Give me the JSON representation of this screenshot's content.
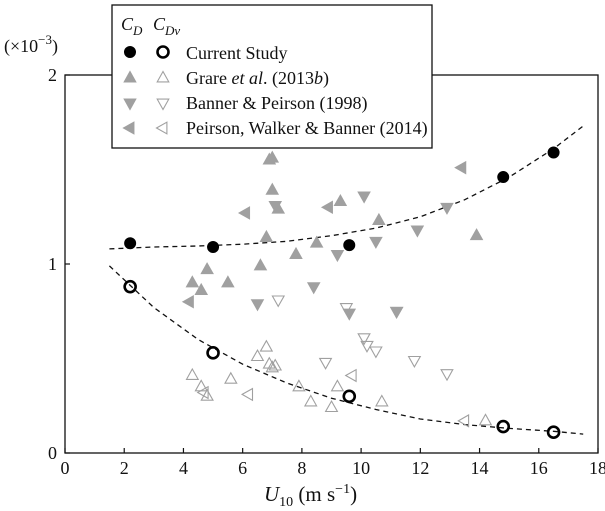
{
  "chart_data": {
    "type": "scatter",
    "xlabel": "U10 (m s−1)",
    "xlabel_parts": {
      "sym": "U",
      "sub": "10",
      "units": " (m s",
      "exp": "−1",
      "close": ")"
    },
    "ylabel": "",
    "y_scale_label": "(×10−3)",
    "y_scale_parts": {
      "pre": "(×10",
      "exp": "−3",
      "close": ")"
    },
    "xlim": [
      0,
      18
    ],
    "ylim": [
      0,
      2
    ],
    "x_ticks": [
      0,
      2,
      4,
      6,
      8,
      10,
      12,
      14,
      16,
      18
    ],
    "y_ticks": [
      0,
      1,
      2
    ],
    "grid": false,
    "legend": {
      "placement": "top-left",
      "headers": [
        {
          "sym": "C",
          "sub": "D"
        },
        {
          "sym": "C",
          "sub": "Dv"
        }
      ],
      "entries": [
        {
          "label": "Current Study",
          "parts": [
            "Current Study"
          ],
          "marker": "circle"
        },
        {
          "label": "Grare et al. (2013b)",
          "parts": [
            "Grare ",
            "et al",
            ". (2013",
            "b",
            ")"
          ],
          "marker": "triangle-up"
        },
        {
          "label": "Banner & Peirson (1998)",
          "parts": [
            "Banner & Peirson (1998)"
          ],
          "marker": "triangle-down"
        },
        {
          "label": "Peirson, Walker & Banner (2014)",
          "parts": [
            "Peirson, Walker & Banner (2014)"
          ],
          "marker": "triangle-left"
        }
      ]
    },
    "colors": {
      "current": "#000000",
      "literature": "#a0a0a0"
    },
    "series": [
      {
        "group": "CD",
        "source": "Current Study",
        "marker": "circle",
        "filled": true,
        "x": [
          2.2,
          5.0,
          9.6,
          14.8,
          16.5
        ],
        "y": [
          1.11,
          1.09,
          1.1,
          1.46,
          1.59
        ]
      },
      {
        "group": "CDv",
        "source": "Current Study",
        "marker": "circle",
        "filled": false,
        "x": [
          2.2,
          5.0,
          9.6,
          14.8,
          16.5
        ],
        "y": [
          0.88,
          0.53,
          0.3,
          0.14,
          0.11
        ]
      },
      {
        "group": "CD",
        "source": "Grare et al. (2013b)",
        "marker": "triangle-up",
        "filled": true,
        "x": [
          4.3,
          4.6,
          4.8,
          5.5,
          6.6,
          6.8,
          6.9,
          7.0,
          7.0,
          7.2,
          7.8,
          8.5,
          9.3,
          10.6,
          13.9
        ],
        "y": [
          0.9,
          0.86,
          0.97,
          0.9,
          0.99,
          1.14,
          1.55,
          1.56,
          1.39,
          1.29,
          1.05,
          1.11,
          1.33,
          1.23,
          1.15
        ]
      },
      {
        "group": "CDv",
        "source": "Grare et al. (2013b)",
        "marker": "triangle-up",
        "filled": false,
        "x": [
          4.3,
          4.6,
          4.8,
          5.6,
          6.5,
          6.8,
          6.9,
          7.0,
          7.1,
          7.9,
          8.3,
          9.0,
          9.2,
          10.7,
          14.2
        ],
        "y": [
          0.41,
          0.35,
          0.3,
          0.39,
          0.51,
          0.56,
          0.47,
          0.45,
          0.46,
          0.35,
          0.27,
          0.24,
          0.35,
          0.27,
          0.17
        ]
      },
      {
        "group": "CD",
        "source": "Banner & Peirson (1998)",
        "marker": "triangle-down",
        "filled": true,
        "x": [
          6.5,
          7.1,
          8.4,
          9.2,
          9.6,
          10.1,
          10.5,
          11.2,
          11.9,
          12.9
        ],
        "y": [
          0.79,
          1.31,
          0.88,
          1.05,
          0.74,
          1.36,
          1.12,
          0.75,
          1.18,
          1.3
        ]
      },
      {
        "group": "CDv",
        "source": "Banner & Peirson (1998)",
        "marker": "triangle-down",
        "filled": false,
        "x": [
          7.2,
          8.8,
          9.5,
          10.1,
          10.2,
          10.5,
          11.2,
          11.8,
          12.9
        ],
        "y": [
          0.81,
          0.48,
          0.77,
          0.61,
          0.57,
          0.54,
          0.75,
          0.49,
          0.42
        ]
      },
      {
        "group": "CD",
        "source": "Peirson, Walker & Banner (2014)",
        "marker": "triangle-left",
        "filled": true,
        "x": [
          4.2,
          6.1,
          8.9,
          13.4
        ],
        "y": [
          0.8,
          1.27,
          1.3,
          1.51
        ]
      },
      {
        "group": "CDv",
        "source": "Peirson, Walker & Banner (2014)",
        "marker": "triangle-left",
        "filled": false,
        "x": [
          4.7,
          6.2,
          9.7,
          13.5
        ],
        "y": [
          0.32,
          0.31,
          0.41,
          0.17
        ]
      }
    ],
    "fit_curves": [
      {
        "group": "CD",
        "style": "dashed",
        "x": [
          1.5,
          3,
          4.5,
          6,
          7.5,
          9,
          10.5,
          12,
          13.5,
          15,
          16.5,
          17.5
        ],
        "y": [
          1.08,
          1.09,
          1.095,
          1.105,
          1.12,
          1.15,
          1.19,
          1.25,
          1.34,
          1.46,
          1.61,
          1.73
        ]
      },
      {
        "group": "CDv",
        "style": "dashed",
        "x": [
          1.5,
          3,
          4.5,
          6,
          7.5,
          9,
          10.5,
          12,
          13.5,
          15,
          16.5,
          17.5
        ],
        "y": [
          0.99,
          0.77,
          0.6,
          0.47,
          0.37,
          0.29,
          0.23,
          0.18,
          0.15,
          0.13,
          0.115,
          0.1
        ]
      }
    ]
  }
}
